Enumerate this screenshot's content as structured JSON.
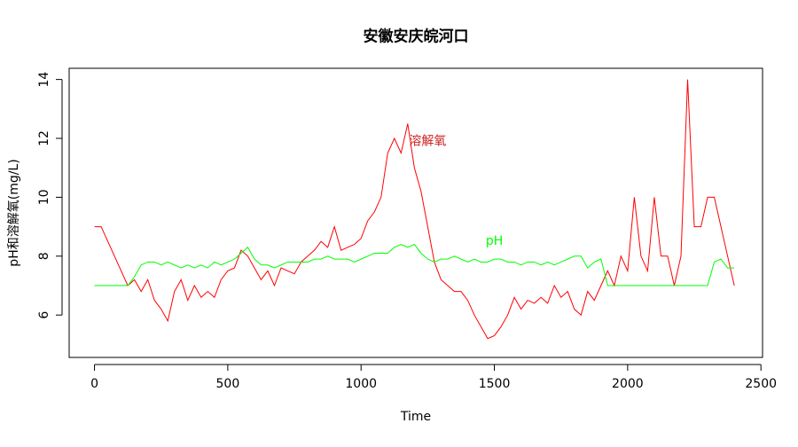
{
  "chart_data": {
    "type": "line",
    "title": "安徽安庆皖河口",
    "xlabel": "Time",
    "ylabel": "pH和溶解氧(mg/L)",
    "x": [
      0,
      25,
      50,
      75,
      100,
      125,
      150,
      175,
      200,
      225,
      250,
      275,
      300,
      325,
      350,
      375,
      400,
      425,
      450,
      475,
      500,
      525,
      550,
      575,
      600,
      625,
      650,
      675,
      700,
      725,
      750,
      775,
      800,
      825,
      850,
      875,
      900,
      925,
      950,
      975,
      1000,
      1025,
      1050,
      1075,
      1100,
      1125,
      1150,
      1175,
      1200,
      1225,
      1250,
      1275,
      1300,
      1325,
      1350,
      1375,
      1400,
      1425,
      1450,
      1475,
      1500,
      1525,
      1550,
      1575,
      1600,
      1625,
      1650,
      1675,
      1700,
      1725,
      1750,
      1775,
      1800,
      1825,
      1850,
      1875,
      1900,
      1925,
      1950,
      1975,
      2000,
      2025,
      2050,
      2075,
      2100,
      2125,
      2150,
      2175,
      2200,
      2225,
      2250,
      2275,
      2300,
      2325,
      2350,
      2375,
      2400
    ],
    "series": [
      {
        "name": "溶解氧",
        "color": "#ff0000",
        "values": [
          9,
          9,
          8.5,
          8,
          7.5,
          7,
          7.2,
          6.8,
          7.2,
          6.5,
          6.2,
          5.8,
          6.8,
          7.2,
          6.5,
          7.0,
          6.6,
          6.8,
          6.6,
          7.2,
          7.5,
          7.6,
          8.2,
          8.0,
          7.6,
          7.2,
          7.5,
          7.0,
          7.6,
          7.5,
          7.4,
          7.8,
          8.0,
          8.2,
          8.5,
          8.3,
          9.0,
          8.2,
          8.3,
          8.4,
          8.6,
          9.2,
          9.5,
          10.0,
          11.5,
          12.0,
          11.5,
          12.5,
          11.0,
          10.2,
          9.0,
          7.8,
          7.2,
          7.0,
          6.8,
          6.8,
          6.5,
          6.0,
          5.6,
          5.2,
          5.3,
          5.6,
          6.0,
          6.6,
          6.2,
          6.5,
          6.4,
          6.6,
          6.4,
          7.0,
          6.6,
          6.8,
          6.2,
          6.0,
          6.8,
          6.5,
          7.0,
          7.5,
          7.0,
          8.0,
          7.5,
          10,
          8,
          7.5,
          10,
          8,
          8,
          7.0,
          8,
          14,
          9,
          9,
          10,
          10,
          9,
          8,
          7
        ]
      },
      {
        "name": "pH",
        "color": "#00ff00",
        "values": [
          7,
          7,
          7,
          7,
          7,
          7,
          7.3,
          7.7,
          7.8,
          7.8,
          7.7,
          7.8,
          7.7,
          7.6,
          7.7,
          7.6,
          7.7,
          7.6,
          7.8,
          7.7,
          7.8,
          7.9,
          8.1,
          8.3,
          7.9,
          7.7,
          7.7,
          7.6,
          7.7,
          7.8,
          7.8,
          7.8,
          7.8,
          7.9,
          7.9,
          8.0,
          7.9,
          7.9,
          7.9,
          7.8,
          7.9,
          8.0,
          8.1,
          8.1,
          8.1,
          8.3,
          8.4,
          8.3,
          8.4,
          8.1,
          7.9,
          7.8,
          7.9,
          7.9,
          8.0,
          7.9,
          7.8,
          7.9,
          7.8,
          7.8,
          7.9,
          7.9,
          7.8,
          7.8,
          7.7,
          7.8,
          7.8,
          7.7,
          7.8,
          7.7,
          7.8,
          7.9,
          8.0,
          8.0,
          7.6,
          7.8,
          7.9,
          7.0,
          7,
          7,
          7,
          7,
          7,
          7,
          7,
          7,
          7,
          7,
          7,
          7,
          7,
          7,
          7,
          7.8,
          7.9,
          7.6,
          7.6
        ]
      }
    ],
    "annotations": [
      {
        "text": "溶解氧",
        "x": 1250,
        "y": 11.9,
        "color": "#cc2222"
      },
      {
        "text": "pH",
        "x": 1500,
        "y": 8.5,
        "color": "#00ff00"
      }
    ],
    "xlim": [
      -95,
      2506
    ],
    "xticks": [
      0,
      500,
      1000,
      1500,
      2000,
      2500
    ],
    "ylim": [
      4.56,
      14.38
    ],
    "yticks": [
      6,
      8,
      10,
      12,
      14
    ]
  }
}
